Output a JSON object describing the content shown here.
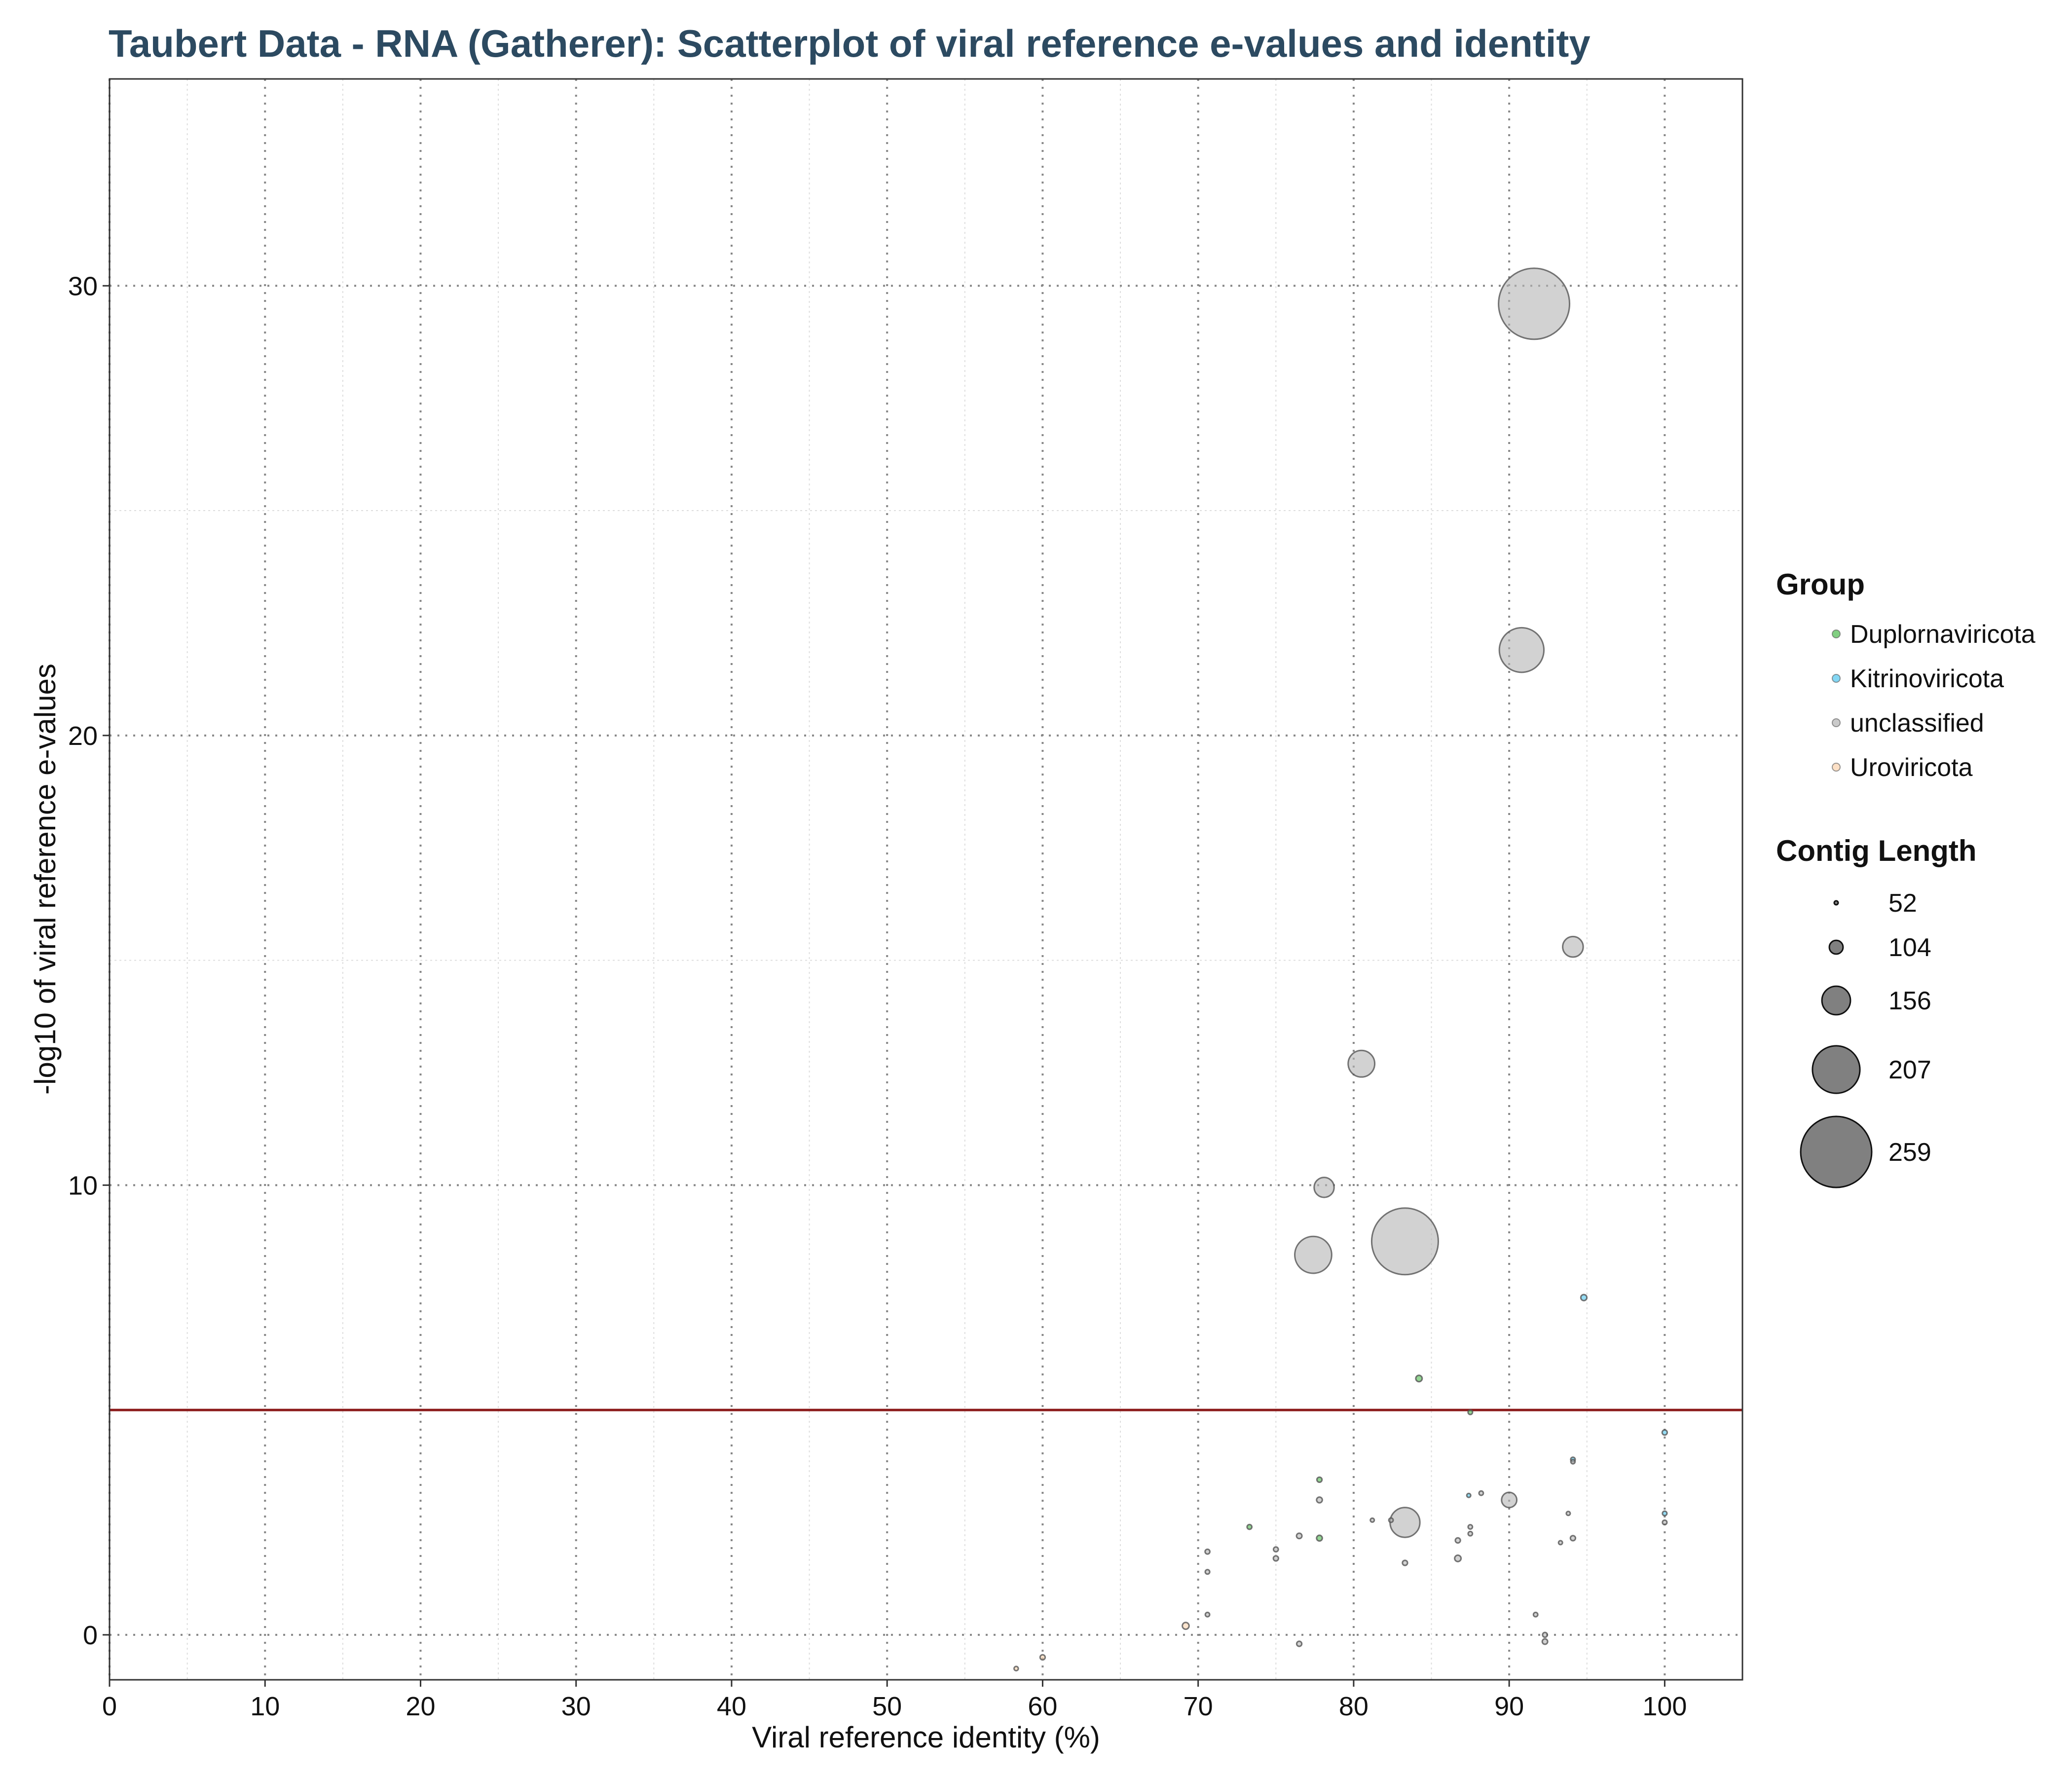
{
  "chart_data": {
    "type": "scatter",
    "title": "Taubert Data - RNA (Gatherer): Scatterplot of viral reference e-values and identity",
    "xlabel": "Viral reference identity (%)",
    "ylabel": "-log10 of viral reference e-values",
    "xlim": [
      0,
      105
    ],
    "ylim": [
      -1,
      34.6
    ],
    "x_ticks": [
      0,
      10,
      20,
      30,
      40,
      50,
      60,
      70,
      80,
      90,
      100
    ],
    "y_ticks": [
      0,
      10,
      20,
      30
    ],
    "threshold_line": {
      "y": 5,
      "color": "#8b1a1a"
    },
    "grid": true,
    "legend_position": "right",
    "groups": [
      {
        "name": "Duplornaviricota",
        "color": "#4cbb4c"
      },
      {
        "name": "Kitrinoviricota",
        "color": "#4fc6ef"
      },
      {
        "name": "unclassified",
        "color": "#b4b4b4"
      },
      {
        "name": "Uroviricota",
        "color": "#fbd3ae"
      }
    ],
    "size_legend_title": "Contig Length",
    "size_legend": [
      52,
      104,
      156,
      207,
      259
    ],
    "points": [
      {
        "x": 91.6,
        "y": 29.6,
        "size": 259,
        "group": "unclassified"
      },
      {
        "x": 90.8,
        "y": 21.9,
        "size": 200,
        "group": "unclassified"
      },
      {
        "x": 94.1,
        "y": 15.3,
        "size": 130,
        "group": "unclassified"
      },
      {
        "x": 80.5,
        "y": 12.7,
        "size": 150,
        "group": "unclassified"
      },
      {
        "x": 78.1,
        "y": 9.95,
        "size": 128,
        "group": "unclassified"
      },
      {
        "x": 77.4,
        "y": 8.45,
        "size": 180,
        "group": "unclassified"
      },
      {
        "x": 83.3,
        "y": 8.75,
        "size": 250,
        "group": "unclassified"
      },
      {
        "x": 94.8,
        "y": 7.5,
        "size": 66,
        "group": "Kitrinoviricota"
      },
      {
        "x": 84.2,
        "y": 5.7,
        "size": 68,
        "group": "Duplornaviricota"
      },
      {
        "x": 87.5,
        "y": 4.95,
        "size": 56,
        "group": "Duplornaviricota"
      },
      {
        "x": 100,
        "y": 4.5,
        "size": 60,
        "group": "Kitrinoviricota"
      },
      {
        "x": 94.1,
        "y": 3.9,
        "size": 56,
        "group": "Kitrinoviricota"
      },
      {
        "x": 94.1,
        "y": 3.85,
        "size": 54,
        "group": "unclassified"
      },
      {
        "x": 77.8,
        "y": 3.45,
        "size": 60,
        "group": "Duplornaviricota"
      },
      {
        "x": 77.8,
        "y": 3.0,
        "size": 64,
        "group": "unclassified"
      },
      {
        "x": 90.0,
        "y": 3.0,
        "size": 110,
        "group": "unclassified"
      },
      {
        "x": 88.2,
        "y": 3.15,
        "size": 55,
        "group": "unclassified"
      },
      {
        "x": 87.4,
        "y": 3.1,
        "size": 52,
        "group": "Kitrinoviricota"
      },
      {
        "x": 93.8,
        "y": 2.7,
        "size": 52,
        "group": "unclassified"
      },
      {
        "x": 100,
        "y": 2.7,
        "size": 56,
        "group": "Kitrinoviricota"
      },
      {
        "x": 100,
        "y": 2.5,
        "size": 56,
        "group": "unclassified"
      },
      {
        "x": 83.3,
        "y": 2.5,
        "size": 160,
        "group": "unclassified"
      },
      {
        "x": 82.4,
        "y": 2.55,
        "size": 55,
        "group": "unclassified"
      },
      {
        "x": 81.2,
        "y": 2.55,
        "size": 52,
        "group": "unclassified"
      },
      {
        "x": 87.5,
        "y": 2.4,
        "size": 55,
        "group": "unclassified"
      },
      {
        "x": 87.5,
        "y": 2.25,
        "size": 55,
        "group": "unclassified"
      },
      {
        "x": 73.3,
        "y": 2.4,
        "size": 58,
        "group": "Duplornaviricota"
      },
      {
        "x": 76.5,
        "y": 2.2,
        "size": 62,
        "group": "unclassified"
      },
      {
        "x": 77.8,
        "y": 2.15,
        "size": 64,
        "group": "Duplornaviricota"
      },
      {
        "x": 86.7,
        "y": 2.1,
        "size": 60,
        "group": "unclassified"
      },
      {
        "x": 94.1,
        "y": 2.15,
        "size": 60,
        "group": "unclassified"
      },
      {
        "x": 93.3,
        "y": 2.05,
        "size": 52,
        "group": "unclassified"
      },
      {
        "x": 70.6,
        "y": 1.85,
        "size": 58,
        "group": "unclassified"
      },
      {
        "x": 75.0,
        "y": 1.9,
        "size": 58,
        "group": "unclassified"
      },
      {
        "x": 75.0,
        "y": 1.7,
        "size": 60,
        "group": "unclassified"
      },
      {
        "x": 83.3,
        "y": 1.6,
        "size": 60,
        "group": "unclassified"
      },
      {
        "x": 86.7,
        "y": 1.7,
        "size": 68,
        "group": "unclassified"
      },
      {
        "x": 70.6,
        "y": 1.4,
        "size": 56,
        "group": "unclassified"
      },
      {
        "x": 70.6,
        "y": 0.45,
        "size": 55,
        "group": "unclassified"
      },
      {
        "x": 91.7,
        "y": 0.45,
        "size": 55,
        "group": "unclassified"
      },
      {
        "x": 69.2,
        "y": 0.2,
        "size": 70,
        "group": "Uroviricota"
      },
      {
        "x": 92.3,
        "y": 0.0,
        "size": 58,
        "group": "unclassified"
      },
      {
        "x": 92.3,
        "y": -0.15,
        "size": 62,
        "group": "unclassified"
      },
      {
        "x": 76.5,
        "y": -0.2,
        "size": 60,
        "group": "unclassified"
      },
      {
        "x": 60.0,
        "y": -0.5,
        "size": 60,
        "group": "Uroviricota"
      },
      {
        "x": 58.3,
        "y": -0.75,
        "size": 54,
        "group": "Uroviricota"
      }
    ]
  }
}
